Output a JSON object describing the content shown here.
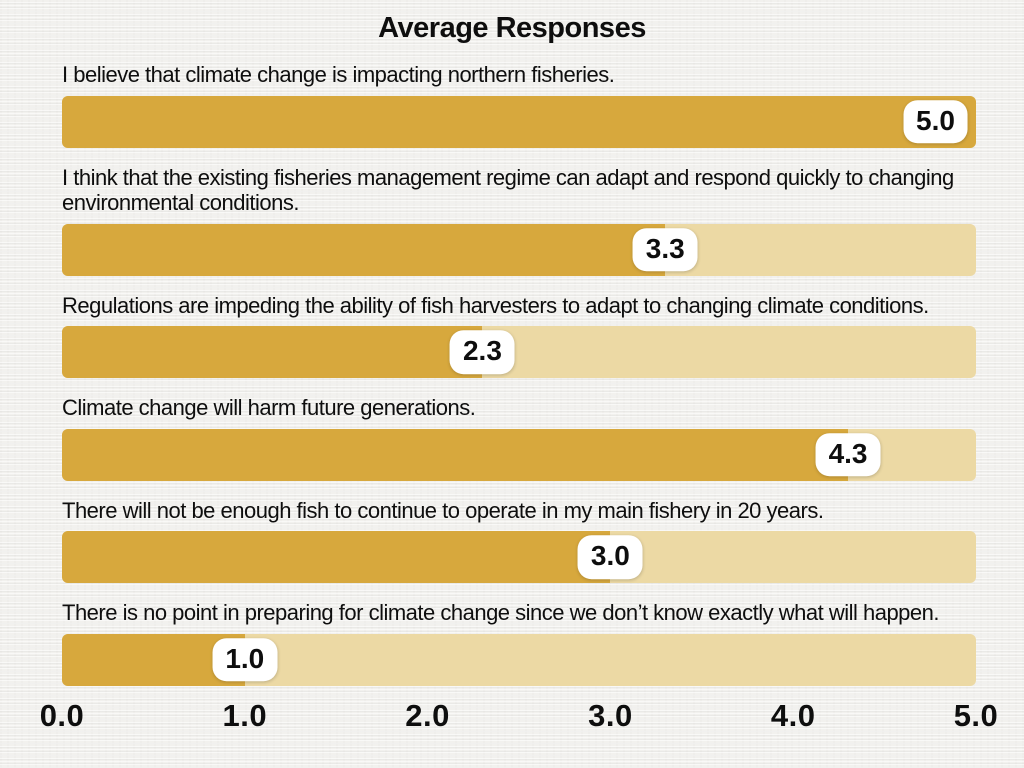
{
  "title": "Average Responses",
  "colors": {
    "bar_fill": "#d7a83d",
    "bar_track": "#ecd9a4",
    "badge_background": "#ffffff",
    "text": "#0e0e0e",
    "page_background": "#f2f1ee"
  },
  "chart_data": {
    "type": "bar",
    "orientation": "horizontal",
    "title": "Average Responses",
    "xlabel": "",
    "ylabel": "",
    "xlim": [
      0,
      5
    ],
    "x_ticks": [
      "0.0",
      "1.0",
      "2.0",
      "3.0",
      "4.0",
      "5.0"
    ],
    "grid": false,
    "legend": false,
    "items": [
      {
        "label": "I believe that climate change is impacting northern fisheries.",
        "value": 5.0,
        "value_label": "5.0"
      },
      {
        "label": "I think that the existing fisheries management regime can adapt and respond quickly to changing environmental conditions.",
        "value": 3.3,
        "value_label": "3.3"
      },
      {
        "label": "Regulations are impeding the ability of fish harvesters to adapt to changing climate conditions.",
        "value": 2.3,
        "value_label": "2.3"
      },
      {
        "label": "Climate change will harm future generations.",
        "value": 4.3,
        "value_label": "4.3"
      },
      {
        "label": "There will not be enough fish to continue to operate in my main fishery in 20 years.",
        "value": 3.0,
        "value_label": "3.0"
      },
      {
        "label": "There is no point in preparing for climate change since we don’t know exactly what will happen.",
        "value": 1.0,
        "value_label": "1.0"
      }
    ]
  }
}
